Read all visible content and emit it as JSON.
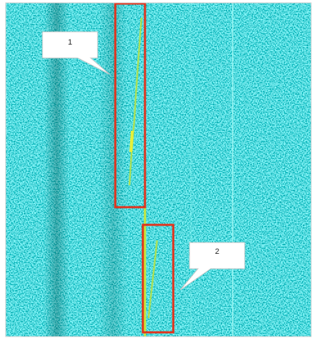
{
  "callouts": [
    {
      "label": "1"
    },
    {
      "label": "2"
    }
  ]
}
